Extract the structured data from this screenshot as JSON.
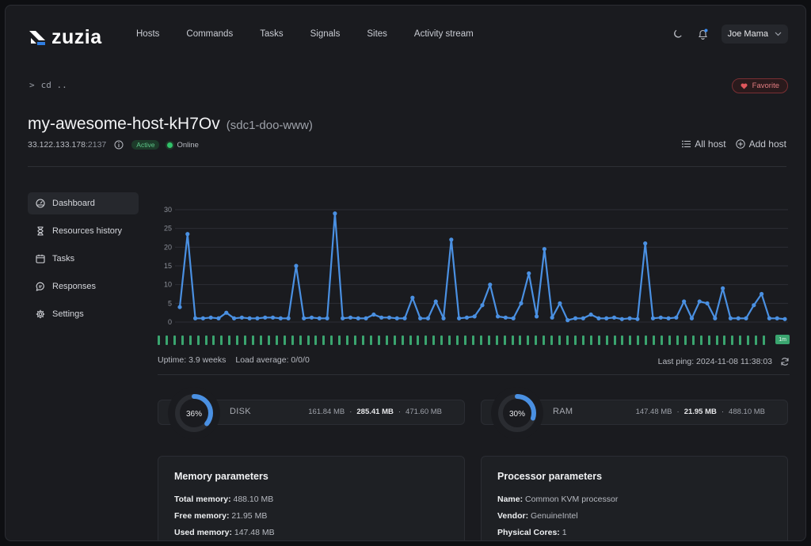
{
  "nav": {
    "logo": "zuzia",
    "links": [
      "Hosts",
      "Commands",
      "Tasks",
      "Signals",
      "Sites",
      "Activity stream"
    ],
    "user": "Joe Mama"
  },
  "breadcrumb": {
    "prompt": ">",
    "command": "cd .."
  },
  "favorite_label": "Favorite",
  "host": {
    "name": "my-awesome-host-kH7Ov",
    "alias": "(sdc1-doo-www)",
    "ip": "33.122.133.178",
    "port": ":2137",
    "status_badge": "Active",
    "online_label": "Online",
    "actions": {
      "all_host": "All host",
      "add_host": "Add host"
    }
  },
  "sidebar": {
    "items": [
      {
        "label": "Dashboard",
        "icon": "dashboard-icon",
        "active": true
      },
      {
        "label": "Resources history",
        "icon": "hourglass-icon",
        "active": false
      },
      {
        "label": "Tasks",
        "icon": "calendar-icon",
        "active": false
      },
      {
        "label": "Responses",
        "icon": "chat-icon",
        "active": false
      },
      {
        "label": "Settings",
        "icon": "gear-icon",
        "active": false
      }
    ]
  },
  "chart_data": {
    "type": "line",
    "ylim": [
      0,
      30
    ],
    "yticks": [
      "0",
      "5",
      "10",
      "15",
      "20",
      "25",
      "30"
    ],
    "series": [
      {
        "values": [
          4,
          23.5,
          1,
          1,
          1.2,
          1,
          2.5,
          1,
          1.2,
          1,
          1,
          1.2,
          1.2,
          1,
          1,
          15,
          1,
          1.2,
          1,
          1,
          29,
          1,
          1.2,
          1,
          1,
          2,
          1.2,
          1.2,
          1,
          1,
          6.5,
          1,
          1,
          5.5,
          1,
          22,
          1,
          1.2,
          1.5,
          4.5,
          10,
          1.5,
          1.2,
          1,
          5,
          13,
          1.5,
          19.5,
          1.2,
          5,
          0.5,
          1,
          1,
          2,
          1,
          1,
          1.2,
          0.8,
          1,
          0.8,
          21,
          1,
          1.2,
          1,
          1.2,
          5.5,
          1,
          5.5,
          5,
          1,
          9,
          1,
          1,
          1,
          4.5,
          7.5,
          1,
          1,
          0.8
        ]
      }
    ],
    "color": "#4a90e2"
  },
  "health": {
    "count": 78,
    "badge": "1m",
    "color": "#3aa56f"
  },
  "stats": {
    "uptime": "Uptime: 3.9 weeks",
    "load": "Load average: 0/0/0",
    "last_ping": "Last ping: 2024-11-08 11:38:03"
  },
  "resources": [
    {
      "label": "DISK",
      "percent": 36,
      "percent_label": "36%",
      "used": "161.84 MB",
      "free": "285.41 MB",
      "total": "471.60 MB"
    },
    {
      "label": "RAM",
      "percent": 30,
      "percent_label": "30%",
      "used": "147.48 MB",
      "free": "21.95 MB",
      "total": "488.10 MB"
    }
  ],
  "memory": {
    "title": "Memory parameters",
    "rows": [
      {
        "k": "Total memory:",
        "v": "488.10 MB"
      },
      {
        "k": "Free memory:",
        "v": "21.95 MB"
      },
      {
        "k": "Used memory:",
        "v": "147.48 MB"
      }
    ]
  },
  "processor": {
    "title": "Processor parameters",
    "rows": [
      {
        "k": "Name:",
        "v": "Common KVM processor"
      },
      {
        "k": "Vendor:",
        "v": "GenuineIntel"
      },
      {
        "k": "Physical Cores:",
        "v": "1"
      }
    ]
  }
}
